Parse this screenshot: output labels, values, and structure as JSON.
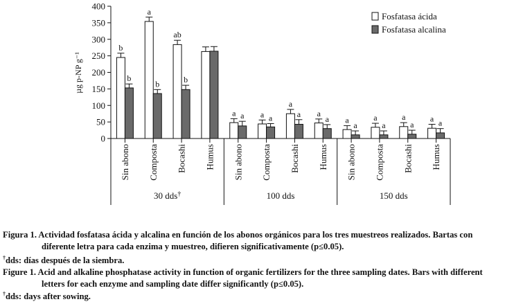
{
  "chart_data": {
    "type": "bar",
    "ylabel": "µg p-NP g⁻¹",
    "ylim": [
      0,
      400
    ],
    "yticks": [
      "0",
      "50",
      "100",
      "150",
      "200",
      "250",
      "300",
      "350",
      "400"
    ],
    "series": [
      {
        "name": "Fosfatasa ácida",
        "color": "#ffffff"
      },
      {
        "name": "Fosfatasa alcalina",
        "color": "#6a6a6a"
      }
    ],
    "groups": [
      {
        "label": "30 dds",
        "mark": "†",
        "categories": [
          "Sin abono",
          "Composta",
          "Bocashi",
          "Humus"
        ],
        "acid": [
          245,
          354,
          284,
          263
        ],
        "acid_err": [
          13,
          13,
          13,
          14
        ],
        "alk": [
          153,
          136,
          148,
          264
        ],
        "alk_err": [
          12,
          12,
          13,
          14
        ],
        "acid_letters": [
          "b",
          "a",
          "ab",
          ""
        ],
        "alk_letters": [
          "b",
          "b",
          "b",
          ""
        ]
      },
      {
        "label": "100 dds",
        "mark": "",
        "categories": [
          "Sin abono",
          "Composta",
          "Bocashi",
          "Humus"
        ],
        "acid": [
          48,
          44,
          75,
          47
        ],
        "acid_err": [
          12,
          12,
          13,
          12
        ],
        "alk": [
          38,
          35,
          43,
          30
        ],
        "alk_err": [
          14,
          10,
          14,
          12
        ],
        "acid_letters": [
          "a",
          "a",
          "a",
          "a"
        ],
        "alk_letters": [
          "a",
          "a",
          "a",
          "a"
        ]
      },
      {
        "label": "150 dds",
        "mark": "",
        "categories": [
          "Sin abono",
          "Composta",
          "Bocashi",
          "Humus"
        ],
        "acid": [
          27,
          34,
          36,
          31
        ],
        "acid_err": [
          12,
          12,
          12,
          12
        ],
        "alk": [
          11,
          11,
          13,
          17
        ],
        "alk_err": [
          12,
          12,
          12,
          13
        ],
        "acid_letters": [
          "a",
          "a",
          "a",
          "a"
        ],
        "alk_letters": [
          "a",
          "a",
          "a",
          "a"
        ]
      }
    ]
  },
  "caption": {
    "es_1": "Figura 1. Actividad fosfatasa ácida y alcalina en función de los abonos orgánicos para los tres muestreos realizados. Bartas con",
    "es_2": "diferente letra para cada enzima y muestreo, difieren significativamente (p≤0.05).",
    "es_note_mark": "†",
    "es_note": "dds: días después de la siembra.",
    "en_1": "Figure 1. Acid and alkaline phosphatase activity in function of organic fertilizers for the three sampling dates. Bars with different",
    "en_2": "letters for each enzyme and sampling date differ significantly (p≤0.05).",
    "en_note_mark": "†",
    "en_note": "dds: days after sowing."
  }
}
